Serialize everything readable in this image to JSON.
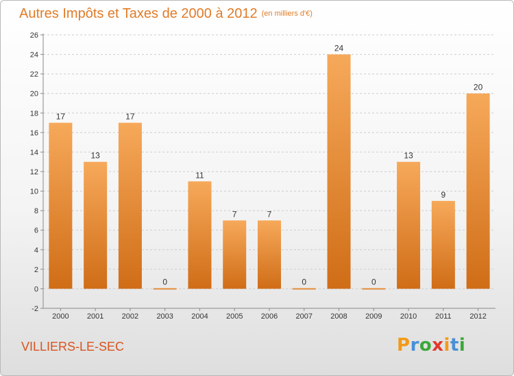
{
  "title": {
    "main": "Autres Impôts et Taxes de 2000 à 2012",
    "unit": "(en milliers d'€)"
  },
  "commune": "VILLIERS-LE-SEC",
  "logo": {
    "letters": [
      "P",
      "r",
      "o",
      "x",
      "i",
      "t",
      "i"
    ],
    "colors": [
      "#f29a17",
      "#4a8fd6",
      "#3aa83a",
      "#e2382c",
      "#f29a17",
      "#4a8fd6",
      "#3aa83a"
    ]
  },
  "colors": {
    "bar_top": "#f6a95a",
    "bar_bottom": "#d06d17",
    "title": "#e07b27",
    "commune": "#d9531e",
    "grid": "#cccccc"
  },
  "chart_data": {
    "type": "bar",
    "categories": [
      "2000",
      "2001",
      "2002",
      "2003",
      "2004",
      "2005",
      "2006",
      "2007",
      "2008",
      "2009",
      "2010",
      "2011",
      "2012"
    ],
    "values": [
      17,
      13,
      17,
      0,
      11,
      7,
      7,
      0,
      24,
      0,
      13,
      9,
      20
    ],
    "data_labels": [
      "17",
      "13",
      "17",
      "0",
      "11",
      "7",
      "7",
      "0",
      "24",
      "0",
      "13",
      "9",
      "20"
    ],
    "title": "Autres Impôts et Taxes de 2000 à 2012",
    "xlabel": "",
    "ylabel": "",
    "ylim": [
      -2,
      26
    ],
    "yticks": [
      -2,
      0,
      2,
      4,
      6,
      8,
      10,
      12,
      14,
      16,
      18,
      20,
      22,
      24,
      26
    ],
    "grid": true,
    "legend": "none"
  }
}
